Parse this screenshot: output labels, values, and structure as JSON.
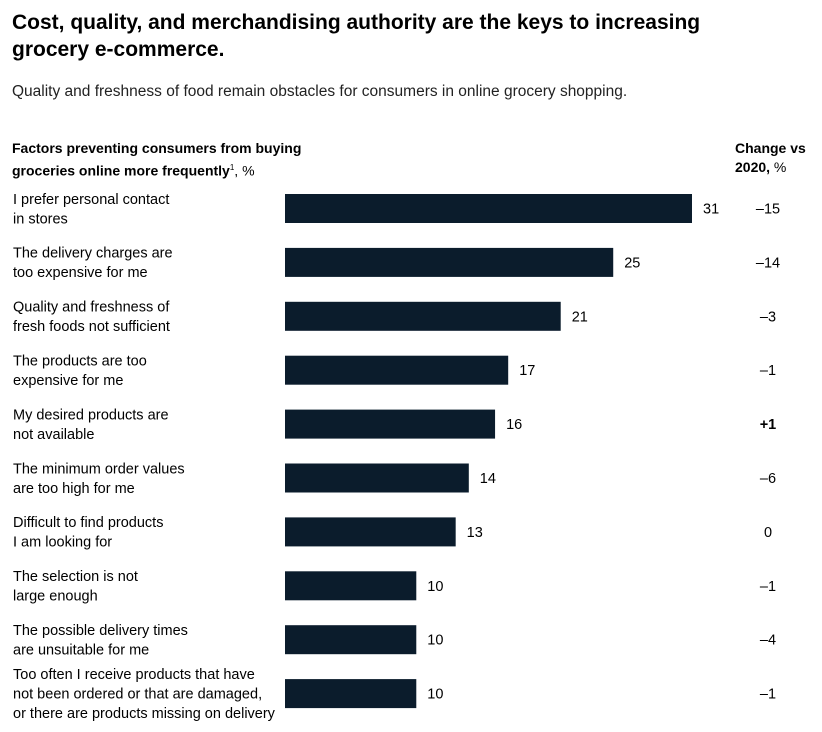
{
  "title": "Cost, quality, and merchandising authority are the keys to increasing grocery e-commerce.",
  "subtitle": "Quality and freshness of food remain obstacles for consumers in online grocery shopping.",
  "left_header": {
    "bold_text": "Factors preventing consumers from buying groceries online more frequently",
    "footnote_mark": "1",
    "unit": ", %"
  },
  "right_header": {
    "bold_text": "Change vs 2020,",
    "unit": " %"
  },
  "colors": {
    "bar": "#0b1c2c",
    "text": "#000000"
  },
  "chart_data": {
    "type": "bar",
    "orientation": "horizontal",
    "categories": [
      [
        "I prefer personal contact",
        "in stores"
      ],
      [
        "The delivery charges are",
        "too expensive for me"
      ],
      [
        "Quality and freshness of",
        "fresh foods not sufficient"
      ],
      [
        "The products are too",
        "expensive for me"
      ],
      [
        "My desired products are",
        "not available"
      ],
      [
        "The minimum order values",
        "are too high for me"
      ],
      [
        "Difficult to find products",
        "I am looking for"
      ],
      [
        "The selection is not",
        "large enough"
      ],
      [
        "The possible delivery times",
        "are unsuitable for me"
      ],
      [
        "Too often I receive products that have",
        "not been ordered or that are damaged,",
        "or there are products missing on delivery"
      ]
    ],
    "values": [
      31,
      25,
      21,
      17,
      16,
      14,
      13,
      10,
      10,
      10
    ],
    "value_labels": [
      "31",
      "25",
      "21",
      "17",
      "16",
      "14",
      "13",
      "10",
      "10",
      "10"
    ],
    "change_vs_2020": [
      "–15",
      "–14",
      "–3",
      "–1",
      "+1",
      "–6",
      "0",
      "–1",
      "–4",
      "–1"
    ],
    "change_bold": [
      false,
      false,
      false,
      false,
      true,
      false,
      false,
      false,
      false,
      false
    ],
    "xlim": [
      0,
      31
    ],
    "grid": false,
    "legend": "none"
  }
}
